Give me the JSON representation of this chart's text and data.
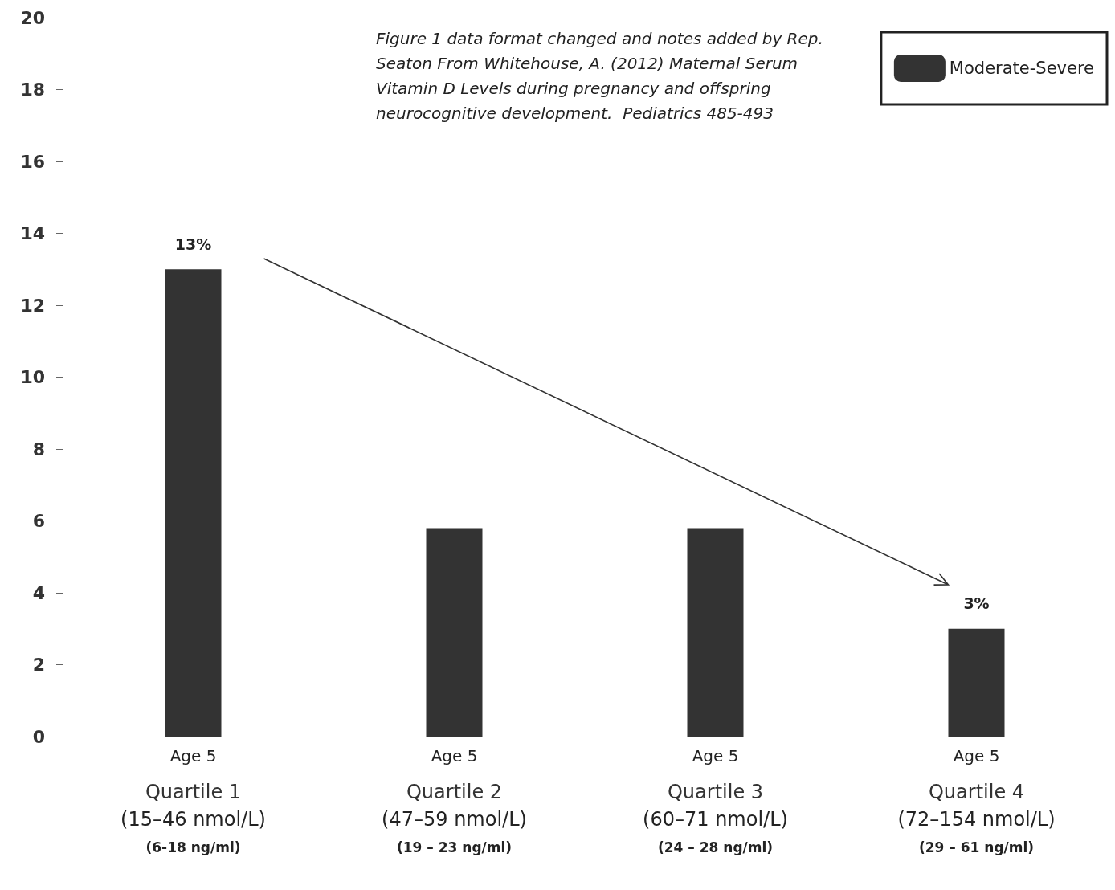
{
  "chart_data": {
    "type": "bar",
    "annotations": [
      "Figure 1 data format changed and notes added by Rep. Seaton From Whitehouse, A. (2012) Maternal Serum Vitamin D Levels during pregnancy and offspring neurocognitive development.  Pediatrics 485-493"
    ],
    "categories": [
      "Age 5\nQuartile 1\n(15–46 nmol/L)\n(6-18 ng/ml)",
      "Age 5\nQuartile 2\n(47–59 nmol/L)\n(19 – 23 ng/ml)",
      "Age 5\nQuartile 3\n(60–71 nmol/L)\n(24 – 28 ng/ml)",
      "Age 5\nQuartile 4\n(72–154 nmol/L)\n(29 – 61 ng/ml)"
    ],
    "series": [
      {
        "name": "Moderate-Severe",
        "color": "#333333",
        "values": [
          13,
          5.8,
          5.8,
          3
        ],
        "value_labels": [
          "13%",
          null,
          null,
          "3%"
        ]
      }
    ],
    "ylim": [
      0,
      20
    ],
    "yticks": [
      0,
      2,
      4,
      6,
      8,
      10,
      12,
      14,
      16,
      18,
      20
    ],
    "grid": false,
    "legend": "top right"
  }
}
